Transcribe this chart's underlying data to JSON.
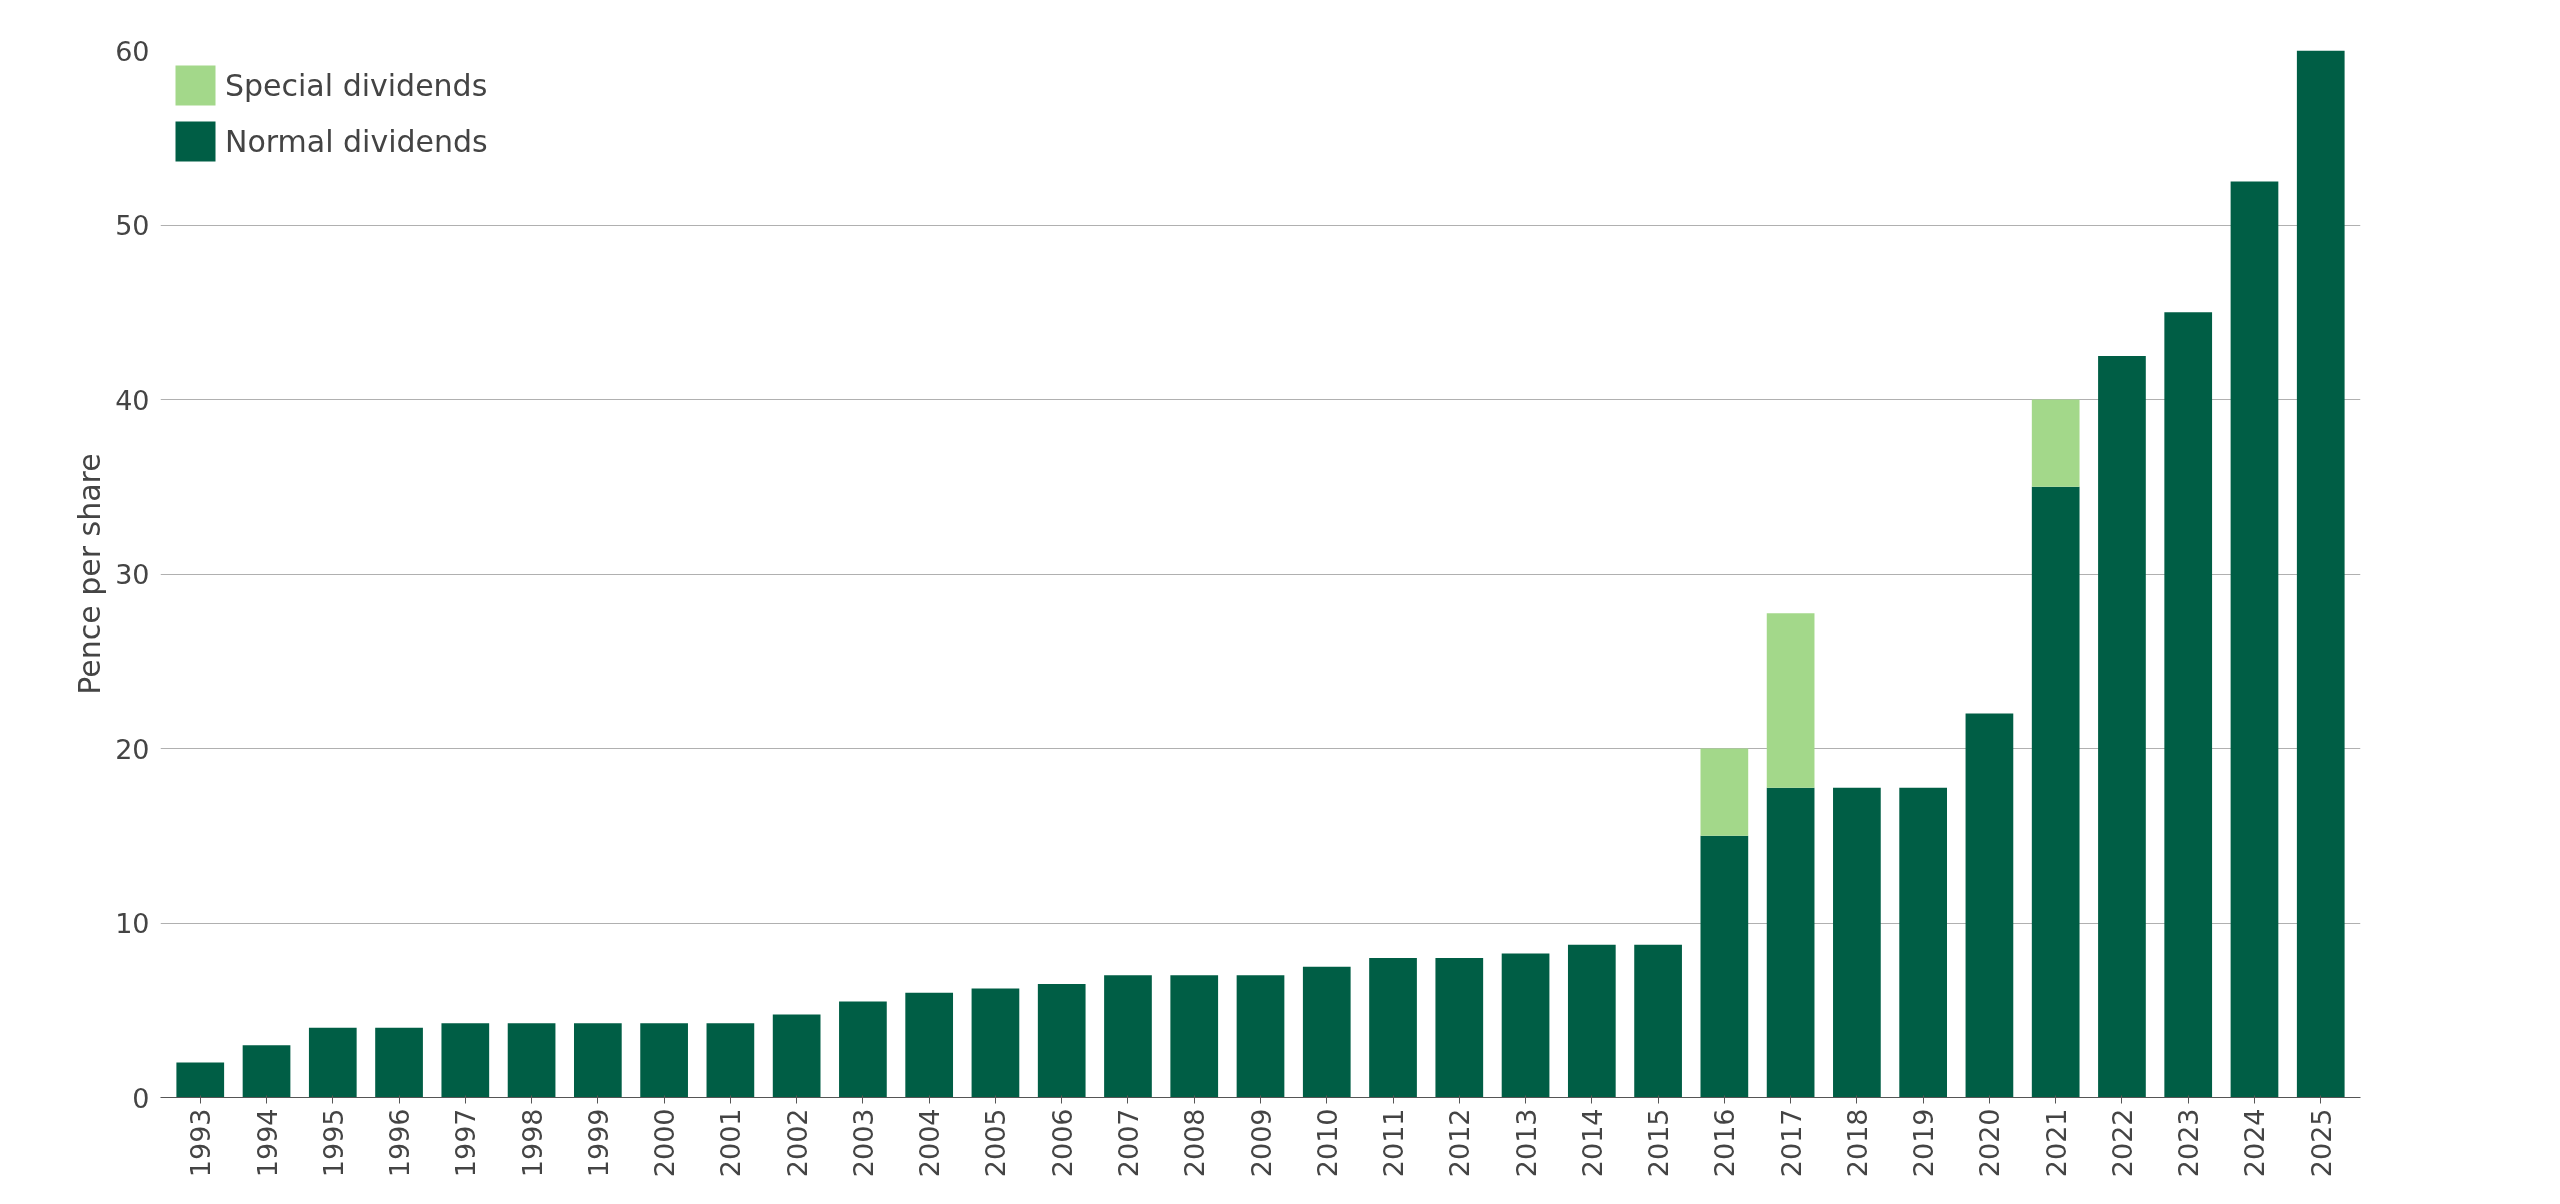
{
  "chart_data": {
    "type": "bar",
    "stacked": true,
    "ylabel": "Pence per share",
    "categories": [
      "1993",
      "1994",
      "1995",
      "1996",
      "1997",
      "1998",
      "1999",
      "2000",
      "2001",
      "2002",
      "2003",
      "2004",
      "2005",
      "2006",
      "2007",
      "2008",
      "2009",
      "2010",
      "2011",
      "2012",
      "2013",
      "2014",
      "2015",
      "2016",
      "2017",
      "2018",
      "2019",
      "2020",
      "2021",
      "2022",
      "2023",
      "2024",
      "2025"
    ],
    "series": [
      {
        "name": "Normal dividends",
        "color": "#005e45",
        "values": [
          2.0,
          3.0,
          4.0,
          4.0,
          4.25,
          4.25,
          4.25,
          4.25,
          4.25,
          4.75,
          5.5,
          6.0,
          6.25,
          6.5,
          7.0,
          7.0,
          7.0,
          7.5,
          8.0,
          8.0,
          8.25,
          8.75,
          8.75,
          15.0,
          17.75,
          17.75,
          17.75,
          22.0,
          35.0,
          42.5,
          45.0,
          52.5,
          60.0
        ]
      },
      {
        "name": "Special dividends",
        "color": "#a3d88a",
        "values": [
          null,
          null,
          null,
          null,
          null,
          null,
          null,
          null,
          null,
          null,
          null,
          null,
          null,
          null,
          null,
          null,
          null,
          null,
          null,
          null,
          null,
          null,
          null,
          5.0,
          10.0,
          null,
          null,
          null,
          5.0,
          null,
          null,
          null,
          null
        ]
      }
    ],
    "ylim": [
      0,
      60
    ],
    "yticks": [
      0,
      10,
      20,
      30,
      40,
      50,
      60
    ],
    "grid": "y",
    "legend": "top left"
  }
}
